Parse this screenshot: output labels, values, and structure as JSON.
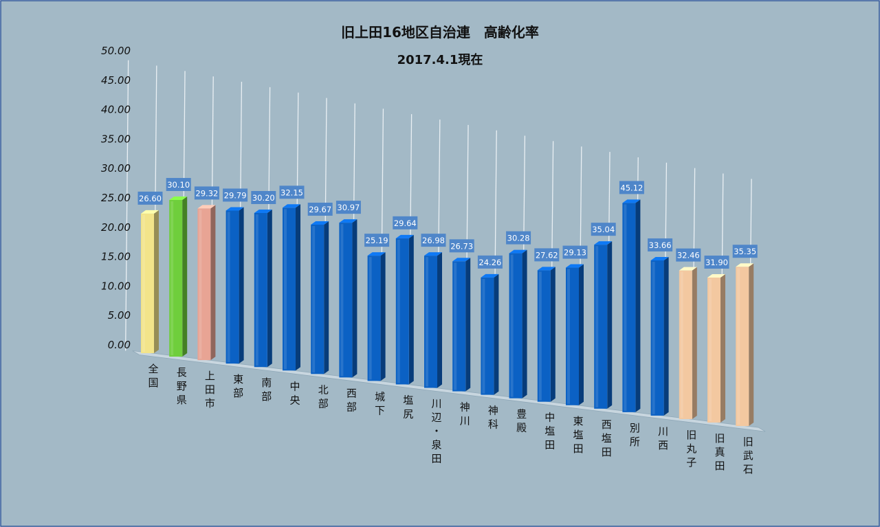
{
  "chart_data": {
    "type": "bar",
    "title": "旧上田16地区自治連　高齢化率",
    "subtitle": "2017.4.1現在",
    "ylim": [
      0,
      50
    ],
    "y_ticks": [
      "0.00",
      "5.00",
      "10.00",
      "15.00",
      "20.00",
      "25.00",
      "30.00",
      "35.00",
      "40.00",
      "45.00",
      "50.00"
    ],
    "grid": true,
    "categories": [
      "全国",
      "長野県",
      "上田市",
      "東部",
      "南部",
      "中央",
      "北部",
      "西部",
      "城下",
      "塩尻",
      "川辺・泉田",
      "神川",
      "神科",
      "豊殿",
      "中塩田",
      "東塩田",
      "西塩田",
      "別所",
      "川西",
      "旧丸子",
      "旧真田",
      "旧武石"
    ],
    "values": [
      26.6,
      30.1,
      29.32,
      29.79,
      30.2,
      32.15,
      29.67,
      30.97,
      25.19,
      29.64,
      26.98,
      26.73,
      24.26,
      30.28,
      27.62,
      29.13,
      35.04,
      45.12,
      33.66,
      32.46,
      31.9,
      35.35
    ],
    "value_labels": [
      "26.60",
      "30.10",
      "29.32",
      "29.79",
      "30.20",
      "32.15",
      "29.67",
      "30.97",
      "25.19",
      "29.64",
      "26.98",
      "26.73",
      "24.26",
      "30.28",
      "27.62",
      "29.13",
      "35.04",
      "45.12",
      "33.66",
      "32.46",
      "31.90",
      "35.35"
    ],
    "bar_colors": [
      "#f2e48a",
      "#6fce3c",
      "#e8a494",
      "#0b61c4",
      "#0b61c4",
      "#0b61c4",
      "#0b61c4",
      "#0b61c4",
      "#0b61c4",
      "#0b61c4",
      "#0b61c4",
      "#0b61c4",
      "#0b61c4",
      "#0b61c4",
      "#0b61c4",
      "#0b61c4",
      "#0b61c4",
      "#0b61c4",
      "#0b61c4",
      "#f3c8a0",
      "#f3c8a0",
      "#f3c8a0"
    ],
    "background_color": "#a3b9c6",
    "label_box_color": "#4f86c9"
  }
}
